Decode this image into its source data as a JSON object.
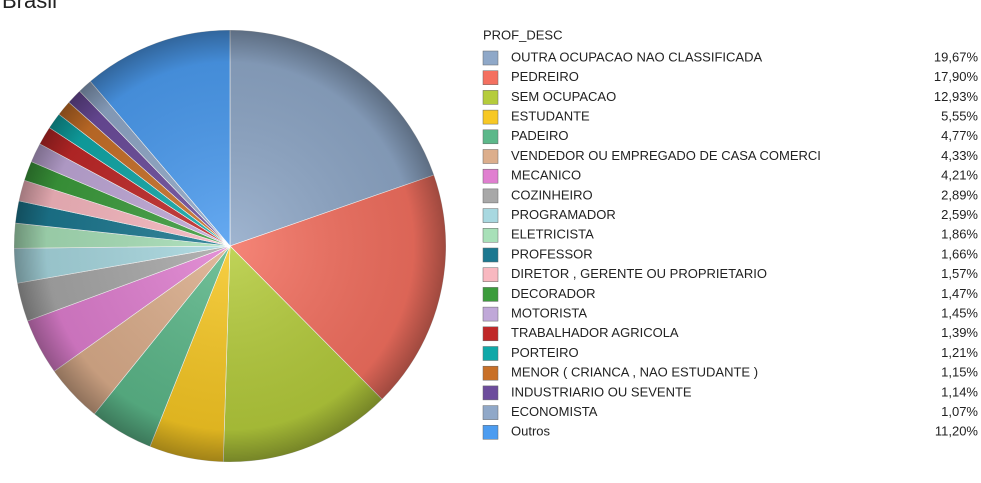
{
  "chart_data": {
    "type": "pie",
    "title": "Brasil",
    "legend_title": "PROF_DESC",
    "legend": "right",
    "categories": [
      "OUTRA OCUPACAO NAO CLASSIFICADA",
      "PEDREIRO",
      "SEM OCUPACAO",
      "ESTUDANTE",
      "PADEIRO",
      "VENDEDOR OU EMPREGADO DE CASA COMERCI",
      "MECANICO",
      "COZINHEIRO",
      "PROGRAMADOR",
      "ELETRICISTA",
      "PROFESSOR",
      "DIRETOR , GERENTE OU PROPRIETARIO",
      "DECORADOR",
      "MOTORISTA",
      "TRABALHADOR AGRICOLA",
      "PORTEIRO",
      "MENOR ( CRIANCA , NAO ESTUDANTE )",
      "INDUSTRIARIO OU SEVENTE",
      "ECONOMISTA",
      "Outros"
    ],
    "values": [
      19.67,
      17.9,
      12.93,
      5.55,
      4.77,
      4.33,
      4.21,
      2.89,
      2.59,
      1.86,
      1.66,
      1.57,
      1.47,
      1.45,
      1.39,
      1.21,
      1.15,
      1.14,
      1.07,
      11.2
    ],
    "value_labels": [
      "19,67%",
      "17,90%",
      "12,93%",
      "5,55%",
      "4,77%",
      "4,33%",
      "4,21%",
      "2,89%",
      "2,59%",
      "1,86%",
      "1,66%",
      "1,57%",
      "1,47%",
      "1,45%",
      "1,39%",
      "1,21%",
      "1,15%",
      "1,14%",
      "1,07%",
      "11,20%"
    ],
    "colors": [
      "#8fa8c8",
      "#f47060",
      "#b5cc3c",
      "#f7c824",
      "#5cb88a",
      "#dcae8c",
      "#e07fd0",
      "#a8a8a8",
      "#a8d8e0",
      "#a8e0b8",
      "#1c7890",
      "#f8b8c0",
      "#3c9c3c",
      "#c0a8d8",
      "#c02828",
      "#10a8a8",
      "#c87028",
      "#6c4c9c",
      "#90a8c8",
      "#4c9cf0"
    ]
  }
}
